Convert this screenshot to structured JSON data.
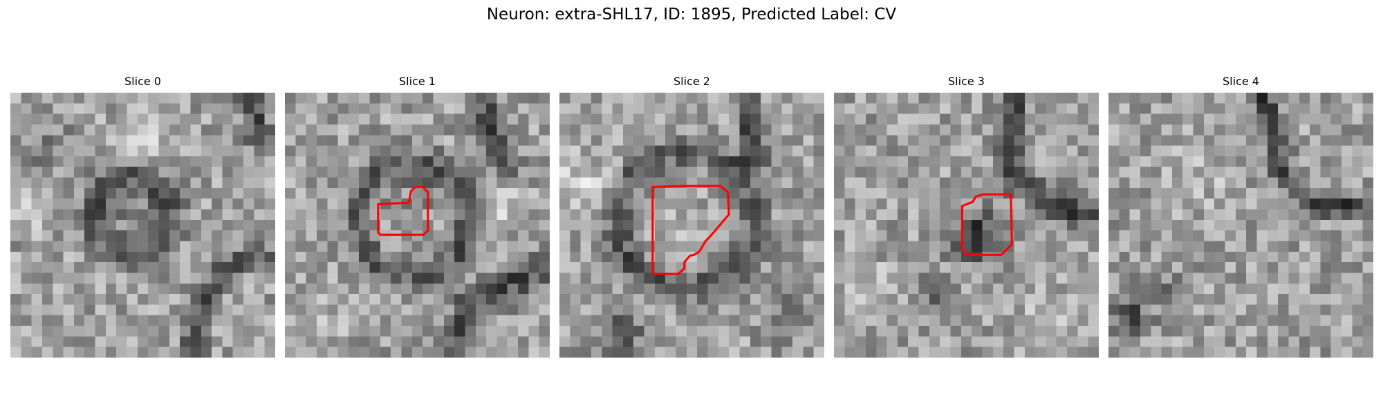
{
  "figure": {
    "title": "Neuron: extra-SHL17, ID: 1895, Predicted Label: CV"
  },
  "panels": [
    {
      "title": "Slice 0",
      "has_contour": false
    },
    {
      "title": "Slice 1",
      "has_contour": true
    },
    {
      "title": "Slice 2",
      "has_contour": true
    },
    {
      "title": "Slice 3",
      "has_contour": true
    },
    {
      "title": "Slice 4",
      "has_contour": false
    }
  ],
  "colors": {
    "contour": "#ff0000",
    "cmap": "gray"
  }
}
